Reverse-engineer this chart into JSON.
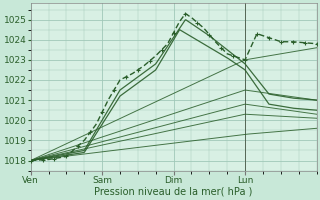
{
  "xlabel": "Pression niveau de la mer( hPa )",
  "bg_color": "#c8e8d8",
  "plot_bg_color": "#d8f0e4",
  "grid_color": "#a0c8b8",
  "line_color": "#2a5e2a",
  "tick_label_color": "#2a5e2a",
  "xlim": [
    0,
    96
  ],
  "ylim": [
    1017.5,
    1025.8
  ],
  "yticks": [
    1018,
    1019,
    1020,
    1021,
    1022,
    1023,
    1024,
    1025
  ],
  "xtick_positions": [
    0,
    24,
    48,
    72
  ],
  "xtick_labels": [
    "Ven",
    "Sam",
    "Dim",
    "Lun"
  ],
  "figsize": [
    3.2,
    2.0
  ],
  "dpi": 100,
  "lines": {
    "main": {
      "x": [
        0,
        6,
        12,
        18,
        22,
        26,
        30,
        34,
        38,
        42,
        46,
        50,
        52,
        54,
        58,
        62,
        66,
        70,
        72,
        76,
        80,
        84,
        88,
        92,
        96
      ],
      "y": [
        1018.0,
        1018.05,
        1018.2,
        1019.0,
        1019.8,
        1021.0,
        1022.0,
        1022.3,
        1022.7,
        1023.2,
        1023.8,
        1024.9,
        1025.3,
        1025.1,
        1024.6,
        1023.9,
        1023.3,
        1023.1,
        1023.0,
        1024.3,
        1024.1,
        1023.9,
        1023.9,
        1023.85,
        1023.8
      ]
    },
    "peak1": {
      "x": [
        0,
        18,
        30,
        42,
        52,
        60,
        66,
        72,
        80,
        88,
        96
      ],
      "y": [
        1018.0,
        1018.5,
        1021.5,
        1022.8,
        1025.0,
        1024.2,
        1023.5,
        1022.8,
        1021.3,
        1021.1,
        1021.0
      ]
    },
    "peak2": {
      "x": [
        0,
        18,
        30,
        42,
        50,
        58,
        66,
        72,
        80,
        88,
        96
      ],
      "y": [
        1018.0,
        1018.4,
        1021.2,
        1022.5,
        1024.5,
        1023.8,
        1023.1,
        1022.5,
        1020.8,
        1020.6,
        1020.5
      ]
    },
    "ens1": {
      "x": [
        0,
        72,
        96
      ],
      "y": [
        1018.0,
        1023.0,
        1023.6
      ]
    },
    "ens2": {
      "x": [
        0,
        72,
        96
      ],
      "y": [
        1018.0,
        1021.5,
        1021.0
      ]
    },
    "ens3": {
      "x": [
        0,
        72,
        96
      ],
      "y": [
        1018.0,
        1020.3,
        1020.1
      ]
    },
    "ens4": {
      "x": [
        0,
        72,
        96
      ],
      "y": [
        1018.0,
        1019.3,
        1019.6
      ]
    },
    "ens5": {
      "x": [
        0,
        72,
        96
      ],
      "y": [
        1018.0,
        1020.8,
        1020.3
      ]
    }
  }
}
